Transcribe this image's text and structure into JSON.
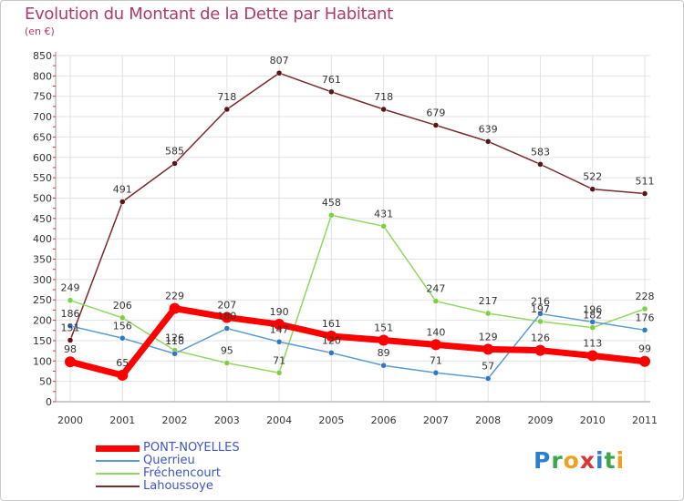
{
  "title": "Evolution du Montant de la Dette par Habitant",
  "subtitle": "(en €)",
  "logo": {
    "text": "Proxiti",
    "letters": [
      {
        "ch": "P",
        "color": "#2a7fd4"
      },
      {
        "ch": "r",
        "color": "#3aa84a"
      },
      {
        "ch": "o",
        "color": "#f0a020"
      },
      {
        "ch": "x",
        "color": "#e03030"
      },
      {
        "ch": "i",
        "color": "#2a7fd4"
      },
      {
        "ch": "t",
        "color": "#3aa84a"
      },
      {
        "ch": "i",
        "color": "#f0a020"
      }
    ]
  },
  "chart_data": {
    "type": "line",
    "title": "Evolution du Montant de la Dette par Habitant",
    "ylabel": "(en €)",
    "xlabel": "",
    "ylim": [
      0,
      850
    ],
    "yticks": [
      0,
      50,
      100,
      150,
      200,
      250,
      300,
      350,
      400,
      450,
      500,
      550,
      600,
      650,
      700,
      750,
      800,
      850
    ],
    "categories": [
      "2000",
      "2001",
      "2002",
      "2003",
      "2004",
      "2005",
      "2006",
      "2007",
      "2008",
      "2009",
      "2010",
      "2011"
    ],
    "grid": true,
    "legend_position": "bottom-left",
    "series": [
      {
        "name": "PONT-NOYELLES",
        "color": "#ff0000",
        "values": [
          98,
          65,
          229,
          207,
          190,
          161,
          151,
          140,
          129,
          126,
          113,
          99
        ],
        "labels": [
          "98",
          "65",
          "229",
          "207",
          "190",
          "161",
          "151",
          "140",
          "129",
          "126",
          "113",
          "99"
        ]
      },
      {
        "name": "Querrieu",
        "color": "#5a9bd4",
        "values": [
          186,
          156,
          118,
          180,
          147,
          120,
          89,
          71,
          57,
          216,
          196,
          176
        ],
        "labels": [
          "186",
          "156",
          "118",
          "180",
          "147",
          "120",
          "89",
          "71",
          "57",
          "216",
          "196",
          "176"
        ]
      },
      {
        "name": "Fréchencourt",
        "color": "#8fd860",
        "values": [
          249,
          206,
          126,
          95,
          71,
          458,
          431,
          247,
          217,
          197,
          182,
          228
        ],
        "labels": [
          "249",
          "206",
          "126",
          "95",
          "71",
          "458",
          "431",
          "247",
          "217",
          "197",
          "182",
          "228"
        ]
      },
      {
        "name": "Lahoussoye",
        "color": "#7a2a2a",
        "values": [
          151,
          491,
          585,
          718,
          807,
          761,
          718,
          679,
          639,
          583,
          522,
          511
        ],
        "labels": [
          "151",
          "491",
          "585",
          "718",
          "807",
          "761",
          "718",
          "679",
          "639",
          "583",
          "522",
          "511"
        ]
      }
    ]
  }
}
